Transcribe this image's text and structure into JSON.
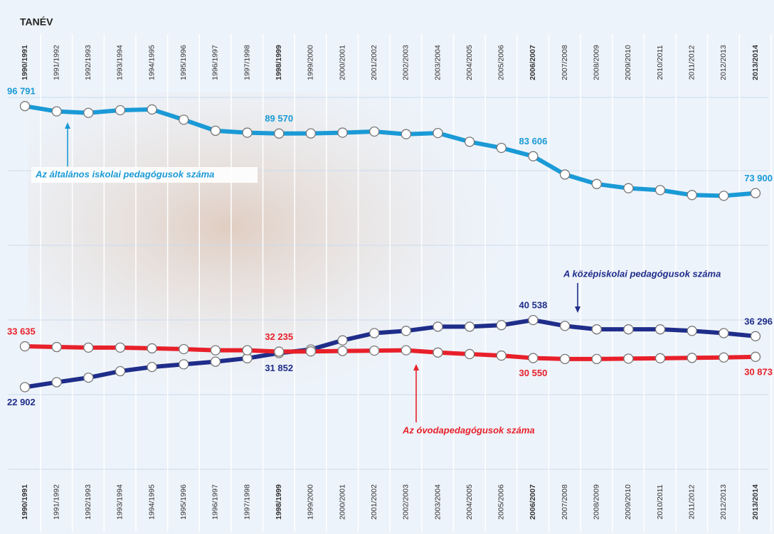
{
  "chart_data": {
    "type": "line",
    "title": "TANÉV",
    "categories": [
      "1990/1991",
      "1991/1992",
      "1992/1993",
      "1993/1994",
      "1994/1995",
      "1995/1996",
      "1996/1997",
      "1997/1998",
      "1998/1999",
      "1999/2000",
      "2000/2001",
      "2001/2002",
      "2002/2003",
      "2003/2004",
      "2004/2005",
      "2005/2006",
      "2006/2007",
      "2007/2008",
      "2008/2009",
      "2009/2010",
      "2010/2011",
      "2011/2012",
      "2012/2013",
      "2013/2014"
    ],
    "ylim": [
      0,
      100000
    ],
    "grid": true,
    "series": [
      {
        "name": "Az általános iskolai pedagógusok száma",
        "color": "#1a9ad6",
        "values": [
          96791,
          95400,
          95000,
          95700,
          95900,
          93200,
          90300,
          89800,
          89570,
          89600,
          89800,
          90100,
          89400,
          89700,
          87400,
          85800,
          83606,
          78800,
          76300,
          75200,
          74700,
          73400,
          73200,
          73900
        ],
        "value_labels": [
          "96 791",
          null,
          null,
          null,
          null,
          null,
          null,
          null,
          "89 570",
          null,
          null,
          null,
          null,
          null,
          null,
          null,
          "83 606",
          null,
          null,
          null,
          null,
          null,
          null,
          "73 900"
        ]
      },
      {
        "name": "A középiskolai pedagógusok száma",
        "color": "#1f2d8a",
        "values": [
          22902,
          24200,
          25400,
          27100,
          28200,
          28900,
          29600,
          30500,
          31852,
          32800,
          35200,
          37100,
          37700,
          38800,
          38800,
          39200,
          40538,
          39000,
          38100,
          38100,
          38100,
          37700,
          37100,
          36296
        ],
        "value_labels": [
          "22 902",
          null,
          null,
          null,
          null,
          null,
          null,
          null,
          "31 852",
          null,
          null,
          null,
          null,
          null,
          null,
          null,
          "40 538",
          null,
          null,
          null,
          null,
          null,
          null,
          "36 296"
        ]
      },
      {
        "name": "Az óvodapedagógusok száma",
        "color": "#e8202a",
        "values": [
          33635,
          33450,
          33300,
          33300,
          33100,
          32900,
          32600,
          32600,
          32235,
          32300,
          32400,
          32500,
          32600,
          32000,
          31600,
          31200,
          30550,
          30300,
          30300,
          30400,
          30500,
          30600,
          30700,
          30873
        ],
        "value_labels": [
          "33 635",
          null,
          null,
          null,
          null,
          null,
          null,
          null,
          "32 235",
          null,
          null,
          null,
          null,
          null,
          null,
          null,
          "30 550",
          null,
          null,
          null,
          null,
          null,
          null,
          "30 873"
        ]
      }
    ]
  }
}
